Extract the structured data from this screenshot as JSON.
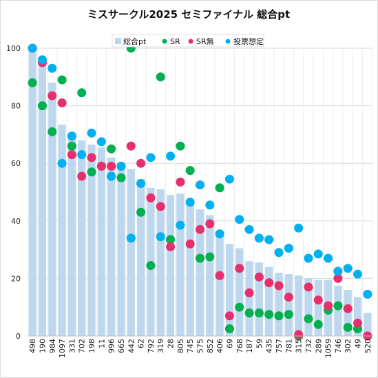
{
  "chart_data": {
    "type": "bar",
    "title": "ミスサークル2025 セミファイナル 総合pt",
    "ylim": [
      0,
      100
    ],
    "yticks": [
      0,
      20,
      40,
      60,
      80,
      100
    ],
    "grid": true,
    "legend_position": "top",
    "categories": [
      "498",
      "190",
      "984",
      "1097",
      "331",
      "702",
      "198",
      "11",
      "996",
      "665",
      "442",
      "62",
      "792",
      "319",
      "28",
      "805",
      "745",
      "575",
      "852",
      "406",
      "69",
      "768",
      "187",
      "59",
      "435",
      "757",
      "781",
      "315",
      "732",
      "289",
      "1059",
      "746",
      "302",
      "49",
      "520"
    ],
    "series": [
      {
        "name": "総合pt",
        "kind": "bar",
        "color": "#bdd7ee",
        "values": [
          100,
          95,
          88,
          73.5,
          69,
          68,
          66.5,
          65.5,
          62,
          59.5,
          58,
          54.5,
          51.5,
          51,
          49,
          49.5,
          46.5,
          44,
          42,
          36,
          32,
          30.5,
          26,
          25.5,
          24,
          22,
          21.5,
          21,
          20,
          19.5,
          19.5,
          17.5,
          16,
          13.5,
          8
        ]
      },
      {
        "name": "SR",
        "kind": "dot",
        "color": "#00b050",
        "values": [
          88,
          80,
          71,
          89,
          66,
          84.5,
          57,
          59,
          65,
          55,
          100,
          43,
          24.5,
          90,
          33.5,
          66,
          57.5,
          27,
          27.5,
          51.5,
          2.5,
          10,
          8,
          8,
          7.5,
          7,
          7.5,
          0,
          6,
          4,
          9,
          10.5,
          3,
          2.5,
          0
        ]
      },
      {
        "name": "SR無",
        "kind": "dot",
        "color": "#e6306e",
        "values": [
          100,
          95,
          83.5,
          81,
          63,
          55.5,
          62,
          59,
          59,
          59,
          66,
          60,
          48,
          45,
          31,
          53.5,
          32,
          37,
          39,
          21,
          7,
          23.5,
          15,
          20.5,
          18.5,
          17.5,
          13.5,
          0.5,
          17,
          12.5,
          10.5,
          20,
          9.5,
          4.5,
          0
        ]
      },
      {
        "name": "投票想定",
        "kind": "dot",
        "color": "#00b0f0",
        "values": [
          100,
          96,
          93,
          60,
          69.5,
          63,
          70.5,
          67.5,
          55.5,
          59,
          34,
          53,
          62,
          34.5,
          62.5,
          38.5,
          46.5,
          52.5,
          45.5,
          35.5,
          54.5,
          40.5,
          37,
          34,
          33.5,
          29,
          30.5,
          37.5,
          27,
          28.5,
          27,
          22.5,
          23.5,
          21.5,
          14.5
        ]
      }
    ]
  }
}
